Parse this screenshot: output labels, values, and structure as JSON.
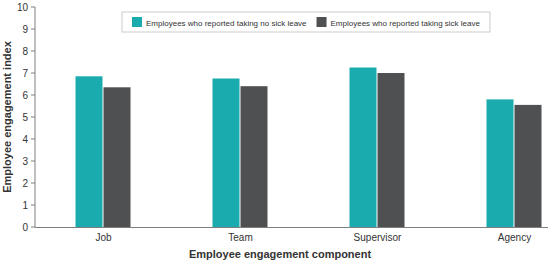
{
  "chart_data": {
    "type": "bar",
    "x_label": "Employee engagement component",
    "y_label": "Employee engagement index",
    "categories": [
      "Job",
      "Team",
      "Supervisor",
      "Agency"
    ],
    "series": [
      {
        "name": "Employees who reported taking no sick leave",
        "color": "#19abad",
        "values": [
          6.85,
          6.75,
          7.25,
          5.8
        ]
      },
      {
        "name": "Employees who reported taking sick leave",
        "color": "#4f5052",
        "values": [
          6.35,
          6.4,
          7.0,
          5.55
        ]
      }
    ],
    "ylim": [
      0,
      10
    ],
    "yticks": [
      0,
      1,
      2,
      3,
      4,
      5,
      6,
      7,
      8,
      9,
      10
    ],
    "grid": false,
    "legend": "top"
  }
}
